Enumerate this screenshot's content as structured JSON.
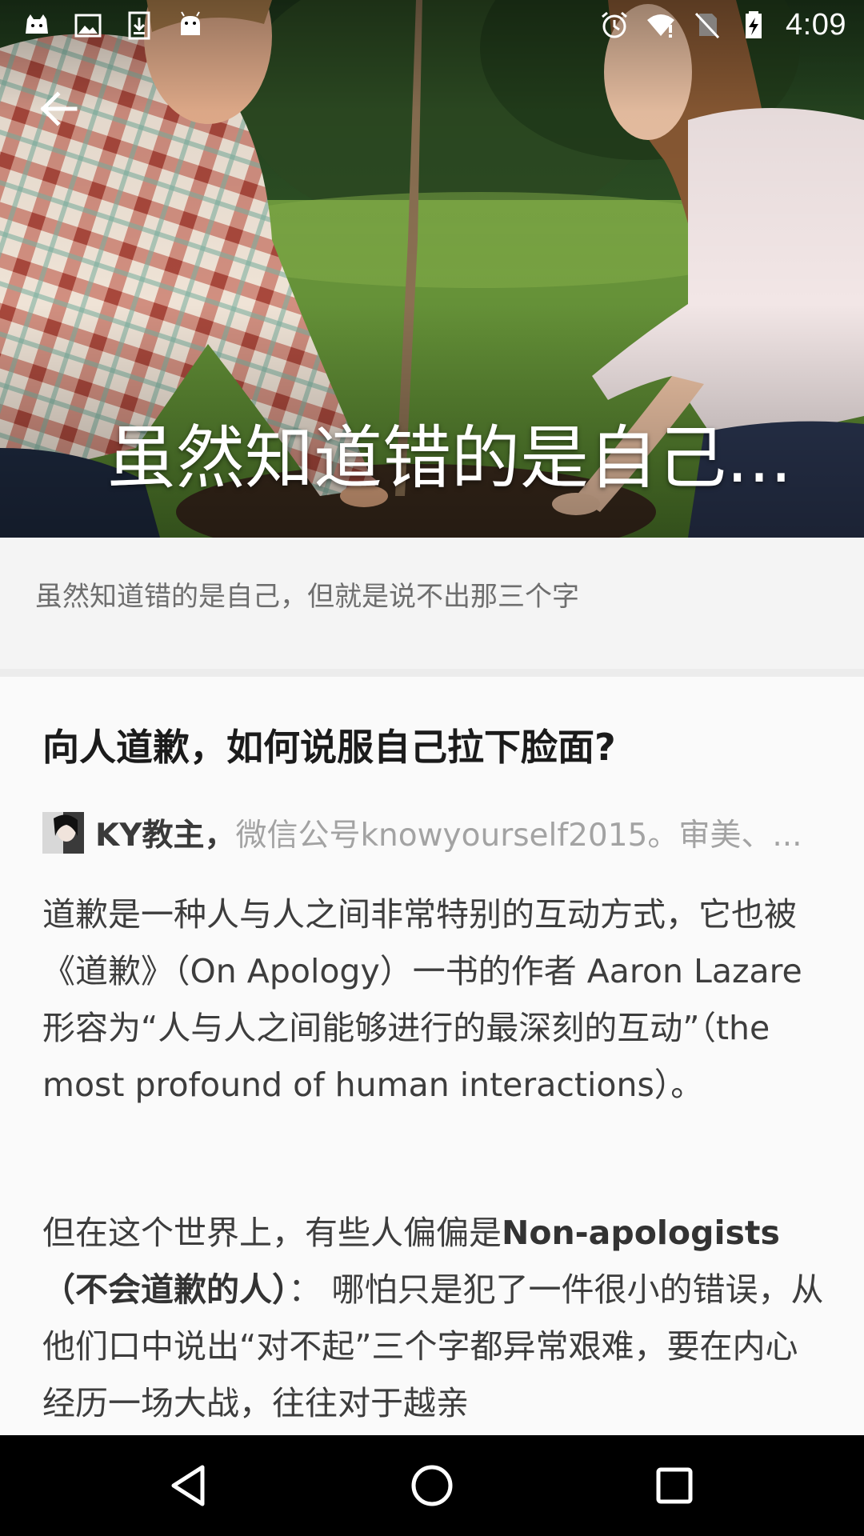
{
  "status_bar": {
    "time": "4:09",
    "left_icons": [
      "app-notification-icon",
      "image-notification-icon",
      "download-notification-icon",
      "android-notification-icon"
    ],
    "right_icons": [
      "alarm-icon",
      "wifi-icon",
      "no-sim-icon",
      "battery-charging-icon"
    ]
  },
  "hero": {
    "title": "虽然知道错的是自己..."
  },
  "subtitle": "虽然知道错的是自己，但就是说不出那三个字",
  "question": {
    "title": "向人道歉，如何说服自己拉下脸面?"
  },
  "author": {
    "name": "KY教主，",
    "bio": "微信公号knowyourself2015。审美、..."
  },
  "paragraphs": {
    "p1": "道歉是一种人与人之间非常特别的互动方式，它也被《道歉》（On Apology）一书的作者 Aaron Lazare 形容为“人与人之间能够进行的最深刻的互动”（the most profound of human interactions）。",
    "p2_before": "但在这个世界上，有些人偏偏是",
    "p2_bold": "Non-apologists（不会道歉的人）",
    "p2_after": "： 哪怕只是犯了一件很小的错误，从他们口中说出“对不起”三个字都异常艰难，要在内心经历一场大战，往往对于越亲"
  },
  "nav_bar": {
    "buttons": [
      "back-nav-icon",
      "home-nav-icon",
      "recents-nav-icon"
    ]
  }
}
